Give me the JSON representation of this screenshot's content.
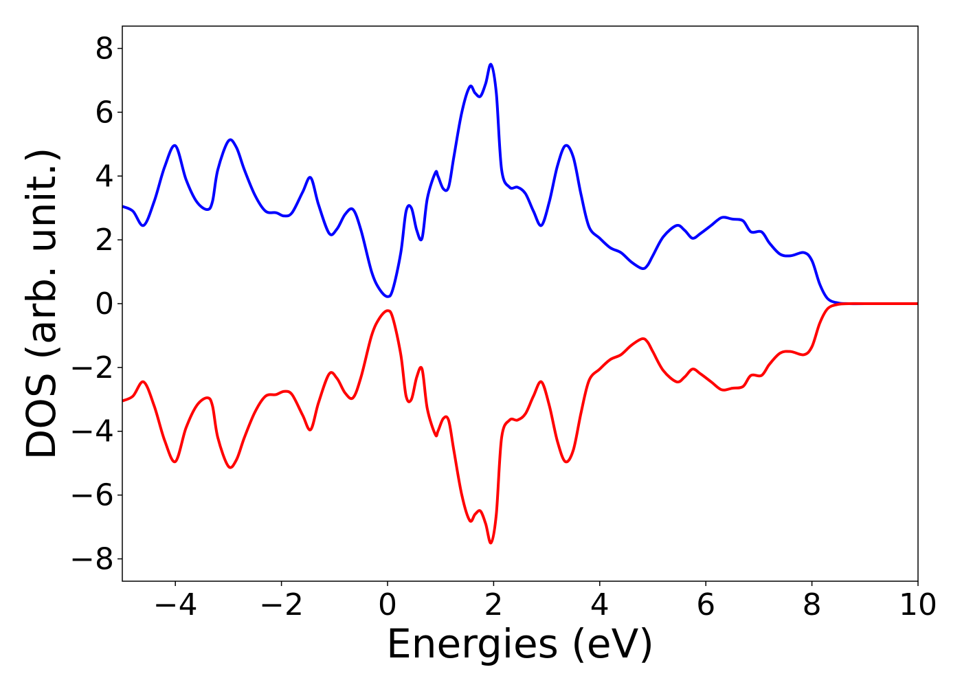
{
  "chart_data": {
    "type": "line",
    "title": "",
    "xlabel": "Energies (eV)",
    "ylabel": "DOS (arb. unit.)",
    "xlim": [
      -5,
      10
    ],
    "ylim": [
      -8.7,
      8.7
    ],
    "xticks": [
      -4,
      -2,
      0,
      2,
      4,
      6,
      8,
      10
    ],
    "xtick_labels": [
      "−4",
      "−2",
      "0",
      "2",
      "4",
      "6",
      "8",
      "10"
    ],
    "yticks": [
      8,
      6,
      4,
      2,
      0,
      -2,
      -4,
      -6,
      -8
    ],
    "ytick_labels": [
      "8",
      "6",
      "4",
      "2",
      "0",
      "−2",
      "−4",
      "−6",
      "−8"
    ],
    "grid": false,
    "legend": "none",
    "series": [
      {
        "color": "#0000ff",
        "x": [
          -5.0,
          -4.8,
          -4.6,
          -4.4,
          -4.2,
          -4.0,
          -3.8,
          -3.6,
          -3.4,
          -3.3,
          -3.2,
          -3.0,
          -2.85,
          -2.7,
          -2.5,
          -2.3,
          -2.1,
          -1.95,
          -1.8,
          -1.6,
          -1.45,
          -1.3,
          -1.1,
          -0.95,
          -0.8,
          -0.65,
          -0.5,
          -0.3,
          -0.15,
          0.0,
          0.1,
          0.25,
          0.35,
          0.45,
          0.55,
          0.65,
          0.75,
          0.9,
          0.95,
          1.05,
          1.15,
          1.25,
          1.4,
          1.55,
          1.65,
          1.75,
          1.85,
          1.95,
          2.05,
          2.15,
          2.3,
          2.45,
          2.6,
          2.75,
          2.9,
          3.05,
          3.2,
          3.35,
          3.5,
          3.65,
          3.8,
          4.0,
          4.2,
          4.4,
          4.6,
          4.8,
          4.9,
          5.0,
          5.2,
          5.45,
          5.6,
          5.75,
          5.9,
          6.1,
          6.3,
          6.5,
          6.7,
          6.85,
          7.05,
          7.2,
          7.4,
          7.6,
          7.85,
          8.0,
          8.15,
          8.3,
          8.5,
          8.7,
          9.0,
          10.0
        ],
        "y": [
          3.05,
          2.9,
          2.45,
          3.2,
          4.3,
          4.95,
          3.9,
          3.2,
          2.95,
          3.2,
          4.2,
          5.1,
          4.9,
          4.2,
          3.4,
          2.9,
          2.85,
          2.75,
          2.85,
          3.5,
          3.95,
          3.1,
          2.2,
          2.35,
          2.8,
          2.95,
          2.3,
          1.0,
          0.45,
          0.22,
          0.45,
          1.6,
          2.9,
          3.0,
          2.3,
          2.05,
          3.3,
          4.1,
          4.0,
          3.6,
          3.65,
          4.6,
          6.0,
          6.8,
          6.6,
          6.5,
          6.9,
          7.5,
          6.6,
          4.2,
          3.65,
          3.65,
          3.45,
          2.9,
          2.45,
          3.2,
          4.3,
          4.95,
          4.6,
          3.4,
          2.4,
          2.05,
          1.75,
          1.6,
          1.3,
          1.1,
          1.2,
          1.5,
          2.1,
          2.45,
          2.3,
          2.05,
          2.2,
          2.45,
          2.7,
          2.65,
          2.6,
          2.25,
          2.25,
          1.9,
          1.55,
          1.5,
          1.6,
          1.35,
          0.6,
          0.15,
          0.02,
          0.0,
          0.0,
          0.0
        ]
      },
      {
        "color": "#ff0000",
        "x": [
          -5.0,
          -4.8,
          -4.6,
          -4.4,
          -4.2,
          -4.0,
          -3.8,
          -3.6,
          -3.4,
          -3.3,
          -3.2,
          -3.0,
          -2.85,
          -2.7,
          -2.5,
          -2.3,
          -2.1,
          -1.95,
          -1.8,
          -1.6,
          -1.45,
          -1.3,
          -1.1,
          -0.95,
          -0.8,
          -0.65,
          -0.5,
          -0.3,
          -0.15,
          0.0,
          0.1,
          0.25,
          0.35,
          0.45,
          0.55,
          0.65,
          0.75,
          0.9,
          0.95,
          1.05,
          1.15,
          1.25,
          1.4,
          1.55,
          1.65,
          1.75,
          1.85,
          1.95,
          2.05,
          2.15,
          2.3,
          2.45,
          2.6,
          2.75,
          2.9,
          3.05,
          3.2,
          3.35,
          3.5,
          3.65,
          3.8,
          4.0,
          4.2,
          4.4,
          4.6,
          4.8,
          4.9,
          5.0,
          5.2,
          5.45,
          5.6,
          5.75,
          5.9,
          6.1,
          6.3,
          6.5,
          6.7,
          6.85,
          7.05,
          7.2,
          7.4,
          7.6,
          7.85,
          8.0,
          8.15,
          8.3,
          8.5,
          8.7,
          9.0,
          10.0
        ],
        "y": [
          -3.05,
          -2.9,
          -2.45,
          -3.2,
          -4.3,
          -4.95,
          -3.9,
          -3.2,
          -2.95,
          -3.2,
          -4.2,
          -5.1,
          -4.9,
          -4.2,
          -3.4,
          -2.9,
          -2.85,
          -2.75,
          -2.85,
          -3.5,
          -3.95,
          -3.1,
          -2.2,
          -2.35,
          -2.8,
          -2.95,
          -2.3,
          -1.0,
          -0.45,
          -0.22,
          -0.45,
          -1.6,
          -2.9,
          -3.0,
          -2.3,
          -2.05,
          -3.3,
          -4.1,
          -4.0,
          -3.6,
          -3.65,
          -4.6,
          -6.0,
          -6.8,
          -6.6,
          -6.5,
          -6.9,
          -7.5,
          -6.6,
          -4.2,
          -3.65,
          -3.65,
          -3.45,
          -2.9,
          -2.45,
          -3.2,
          -4.3,
          -4.95,
          -4.6,
          -3.4,
          -2.4,
          -2.05,
          -1.75,
          -1.6,
          -1.3,
          -1.1,
          -1.2,
          -1.5,
          -2.1,
          -2.45,
          -2.3,
          -2.05,
          -2.2,
          -2.45,
          -2.7,
          -2.65,
          -2.6,
          -2.25,
          -2.25,
          -1.9,
          -1.55,
          -1.5,
          -1.6,
          -1.35,
          -0.6,
          -0.15,
          -0.02,
          0.0,
          0.0,
          0.0
        ]
      }
    ]
  }
}
